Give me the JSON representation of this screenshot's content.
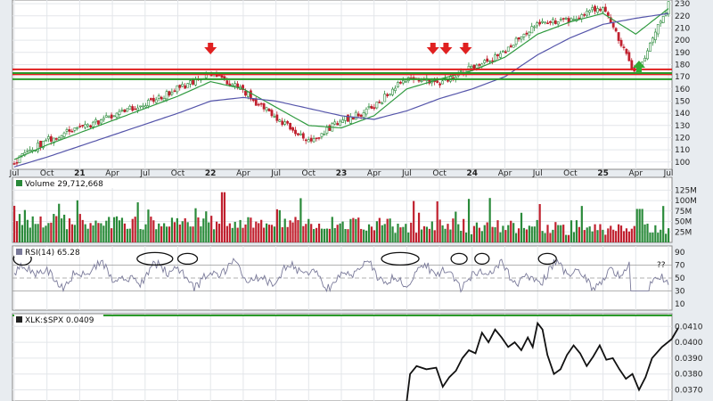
{
  "chart_data": [
    {
      "panel": "price",
      "type": "candlestick",
      "x_ticks": [
        "Jul",
        "Oct",
        "21",
        "Apr",
        "Jul",
        "Oct",
        "22",
        "Apr",
        "Jul",
        "Oct",
        "23",
        "Apr",
        "Jul",
        "Oct",
        "24",
        "Apr",
        "Jul",
        "Oct",
        "25",
        "Apr",
        "Jul"
      ],
      "y_ticks": [
        100,
        110,
        120,
        130,
        140,
        150,
        160,
        170,
        180,
        190,
        200,
        210,
        220,
        230
      ],
      "ylim": [
        94,
        233
      ],
      "grid": true,
      "anchors_x": [
        0,
        1,
        2,
        3,
        4,
        5,
        6,
        7,
        8,
        9,
        10,
        11,
        12,
        13,
        14,
        15,
        16,
        17,
        18,
        19,
        20
      ],
      "anchors_close": [
        100,
        118,
        128,
        137,
        148,
        160,
        172,
        158,
        135,
        118,
        133,
        145,
        170,
        165,
        178,
        190,
        215,
        216,
        228,
        170,
        229
      ],
      "ma_short": [
        102,
        114,
        124,
        134,
        144,
        154,
        166,
        160,
        145,
        130,
        128,
        138,
        160,
        168,
        175,
        186,
        205,
        215,
        222,
        205,
        226
      ],
      "ma_long": [
        96,
        104,
        113,
        122,
        131,
        140,
        150,
        153,
        150,
        144,
        138,
        135,
        142,
        152,
        160,
        170,
        188,
        202,
        213,
        218,
        222
      ],
      "horizontal_lines": [
        {
          "value": 176,
          "color": "#e02020"
        },
        {
          "value": 172,
          "color": "#e02020"
        },
        {
          "value": 173,
          "color": "#2a9a2a"
        },
        {
          "value": 168,
          "color": "#2a9a2a"
        }
      ],
      "arrows_down_at_x": [
        6.0,
        12.8,
        13.2,
        13.8
      ],
      "arrow_up_at_x": 19.1
    },
    {
      "panel": "volume",
      "type": "bar",
      "title": "Volume 29,712,668",
      "y_ticks": [
        "125M",
        "100M",
        "75M",
        "50M",
        "25M"
      ],
      "ylim": [
        0,
        130
      ]
    },
    {
      "panel": "rsi",
      "type": "line",
      "title": "RSI(14) 65.28",
      "y_ticks": [
        90,
        70,
        50,
        30,
        10
      ],
      "ylim": [
        0,
        100
      ],
      "reference_levels": [
        70,
        50,
        30
      ],
      "annotation": "??",
      "ellipse_count": 8
    },
    {
      "panel": "ratio",
      "type": "line",
      "title": "XLK:$SPX 0.0409",
      "y_ticks": [
        "0.0410",
        "0.0400",
        "0.0390",
        "0.0380",
        "0.0370"
      ],
      "ylim": [
        0.0363,
        0.0418
      ],
      "points": [
        [
          12.0,
          0.0363
        ],
        [
          12.1,
          0.038
        ],
        [
          12.3,
          0.0385
        ],
        [
          12.6,
          0.0383
        ],
        [
          12.9,
          0.0384
        ],
        [
          13.1,
          0.0372
        ],
        [
          13.3,
          0.0378
        ],
        [
          13.5,
          0.0382
        ],
        [
          13.7,
          0.039
        ],
        [
          13.9,
          0.0395
        ],
        [
          14.1,
          0.0393
        ],
        [
          14.3,
          0.0406
        ],
        [
          14.5,
          0.04
        ],
        [
          14.7,
          0.0408
        ],
        [
          14.9,
          0.0403
        ],
        [
          15.1,
          0.0397
        ],
        [
          15.3,
          0.04
        ],
        [
          15.5,
          0.0395
        ],
        [
          15.7,
          0.0403
        ],
        [
          15.85,
          0.0397
        ],
        [
          16.0,
          0.0412
        ],
        [
          16.15,
          0.0408
        ],
        [
          16.3,
          0.0392
        ],
        [
          16.5,
          0.038
        ],
        [
          16.7,
          0.0383
        ],
        [
          16.9,
          0.0392
        ],
        [
          17.1,
          0.0398
        ],
        [
          17.3,
          0.0393
        ],
        [
          17.5,
          0.0385
        ],
        [
          17.7,
          0.0391
        ],
        [
          17.9,
          0.0398
        ],
        [
          18.1,
          0.0389
        ],
        [
          18.3,
          0.039
        ],
        [
          18.5,
          0.0383
        ],
        [
          18.7,
          0.0377
        ],
        [
          18.9,
          0.038
        ],
        [
          19.1,
          0.037
        ],
        [
          19.3,
          0.0378
        ],
        [
          19.5,
          0.039
        ],
        [
          19.8,
          0.0397
        ],
        [
          20.1,
          0.0402
        ],
        [
          20.3,
          0.0409
        ]
      ],
      "reference_line_color": "#2a9a2a"
    }
  ],
  "colors": {
    "up": "#2a8a3a",
    "down": "#c0202e",
    "ma_short": "#2f9a3f",
    "ma_long": "#5555aa",
    "rsi_line": "#7a7a9a",
    "ellipse": "#111111",
    "arrow_down": "#e02020",
    "arrow_up": "#33aa33"
  }
}
